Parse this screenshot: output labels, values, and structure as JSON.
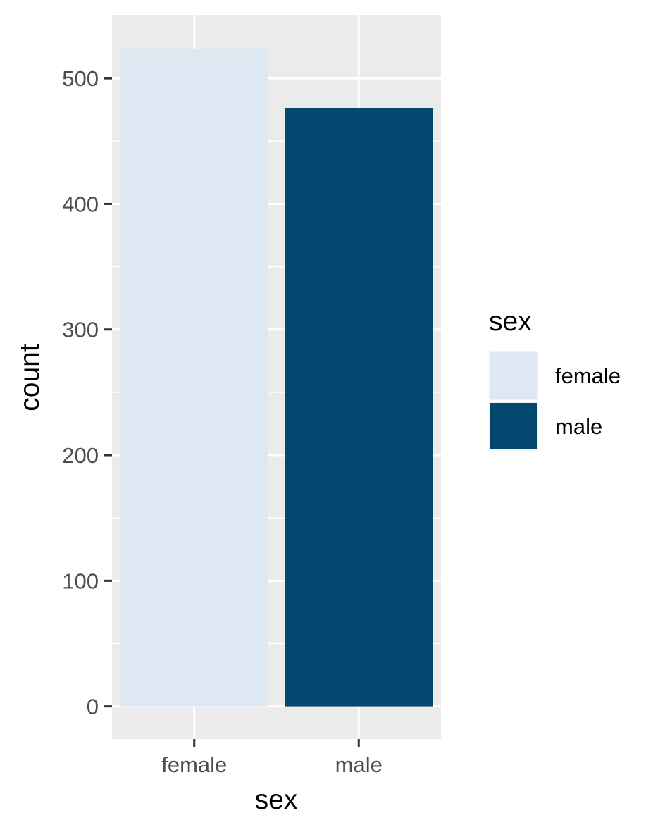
{
  "chart_data": {
    "type": "bar",
    "categories": [
      "female",
      "male"
    ],
    "values": [
      523,
      476
    ],
    "xlabel": "sex",
    "ylabel": "count",
    "ylim": [
      -26,
      550
    ],
    "yticks": [
      0,
      100,
      200,
      300,
      400,
      500
    ],
    "ytick_labels": [
      "0",
      "100",
      "200",
      "300",
      "400",
      "500"
    ],
    "grid": true,
    "panel_background": "#ebebeb",
    "grid_color": "#ffffff",
    "colors": [
      "#dde8f2",
      "#044870"
    ],
    "legend": {
      "title": "sex",
      "placement": "right",
      "entries": [
        "female",
        "male"
      ]
    }
  }
}
